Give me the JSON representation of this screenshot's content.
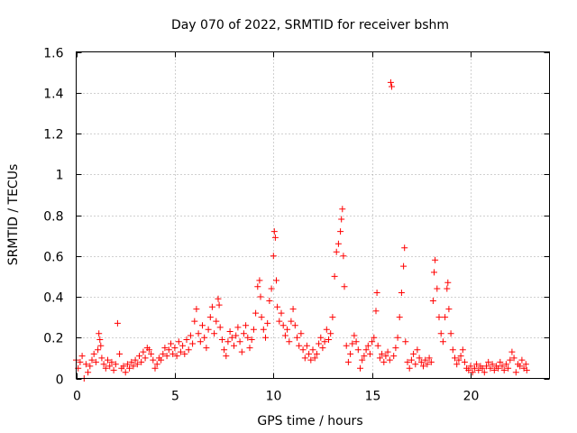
{
  "chart_data": {
    "type": "scatter",
    "title": "Day 070 of 2022, SRMTID for receiver bshm",
    "xlabel": "GPS time / hours",
    "ylabel": "SRMTID / TECUs",
    "xlim": [
      0,
      24
    ],
    "ylim": [
      0,
      1.6
    ],
    "xticks": [
      0,
      5,
      10,
      15,
      20
    ],
    "xtick_labels": [
      "0",
      "5",
      "10",
      "15",
      "20"
    ],
    "yticks": [
      0,
      0.2,
      0.4,
      0.6,
      0.8,
      1,
      1.2,
      1.4,
      1.6
    ],
    "ytick_labels": [
      "0",
      "0.2",
      "0.4",
      "0.6",
      "0.8",
      "1",
      "1.2",
      "1.4",
      "1.6"
    ],
    "grid": true,
    "marker": "plus",
    "color": "#ff0000",
    "points": [
      [
        0.0,
        0.09
      ],
      [
        0.1,
        0.05
      ],
      [
        0.2,
        0.08
      ],
      [
        0.3,
        0.11
      ],
      [
        0.4,
        0.0
      ],
      [
        0.5,
        0.07
      ],
      [
        0.6,
        0.03
      ],
      [
        0.7,
        0.06
      ],
      [
        0.8,
        0.09
      ],
      [
        0.9,
        0.12
      ],
      [
        1.0,
        0.08
      ],
      [
        1.1,
        0.14
      ],
      [
        1.15,
        0.22
      ],
      [
        1.2,
        0.19
      ],
      [
        1.25,
        0.16
      ],
      [
        1.3,
        0.1
      ],
      [
        1.4,
        0.07
      ],
      [
        1.5,
        0.05
      ],
      [
        1.6,
        0.09
      ],
      [
        1.7,
        0.06
      ],
      [
        1.8,
        0.08
      ],
      [
        1.9,
        0.04
      ],
      [
        2.0,
        0.07
      ],
      [
        2.1,
        0.27
      ],
      [
        2.2,
        0.12
      ],
      [
        2.3,
        0.05
      ],
      [
        2.4,
        0.06
      ],
      [
        2.5,
        0.03
      ],
      [
        2.6,
        0.07
      ],
      [
        2.7,
        0.05
      ],
      [
        2.8,
        0.08
      ],
      [
        2.9,
        0.06
      ],
      [
        3.0,
        0.09
      ],
      [
        3.1,
        0.07
      ],
      [
        3.2,
        0.11
      ],
      [
        3.3,
        0.08
      ],
      [
        3.4,
        0.13
      ],
      [
        3.5,
        0.1
      ],
      [
        3.6,
        0.15
      ],
      [
        3.7,
        0.14
      ],
      [
        3.8,
        0.12
      ],
      [
        3.9,
        0.09
      ],
      [
        4.0,
        0.05
      ],
      [
        4.1,
        0.07
      ],
      [
        4.2,
        0.1
      ],
      [
        4.3,
        0.09
      ],
      [
        4.4,
        0.12
      ],
      [
        4.5,
        0.15
      ],
      [
        4.6,
        0.11
      ],
      [
        4.7,
        0.14
      ],
      [
        4.8,
        0.17
      ],
      [
        4.9,
        0.12
      ],
      [
        5.0,
        0.15
      ],
      [
        5.1,
        0.11
      ],
      [
        5.2,
        0.18
      ],
      [
        5.3,
        0.13
      ],
      [
        5.4,
        0.16
      ],
      [
        5.5,
        0.12
      ],
      [
        5.6,
        0.19
      ],
      [
        5.7,
        0.14
      ],
      [
        5.8,
        0.21
      ],
      [
        5.9,
        0.17
      ],
      [
        6.0,
        0.28
      ],
      [
        6.1,
        0.34
      ],
      [
        6.2,
        0.22
      ],
      [
        6.3,
        0.18
      ],
      [
        6.4,
        0.26
      ],
      [
        6.5,
        0.2
      ],
      [
        6.6,
        0.15
      ],
      [
        6.7,
        0.24
      ],
      [
        6.8,
        0.3
      ],
      [
        6.9,
        0.35
      ],
      [
        7.0,
        0.22
      ],
      [
        7.1,
        0.28
      ],
      [
        7.2,
        0.39
      ],
      [
        7.25,
        0.36
      ],
      [
        7.3,
        0.25
      ],
      [
        7.4,
        0.19
      ],
      [
        7.5,
        0.14
      ],
      [
        7.6,
        0.11
      ],
      [
        7.7,
        0.18
      ],
      [
        7.8,
        0.23
      ],
      [
        7.9,
        0.2
      ],
      [
        8.0,
        0.16
      ],
      [
        8.1,
        0.21
      ],
      [
        8.2,
        0.25
      ],
      [
        8.3,
        0.18
      ],
      [
        8.4,
        0.13
      ],
      [
        8.5,
        0.22
      ],
      [
        8.6,
        0.26
      ],
      [
        8.7,
        0.2
      ],
      [
        8.8,
        0.15
      ],
      [
        8.9,
        0.19
      ],
      [
        9.0,
        0.24
      ],
      [
        9.1,
        0.32
      ],
      [
        9.2,
        0.45
      ],
      [
        9.3,
        0.48
      ],
      [
        9.35,
        0.4
      ],
      [
        9.4,
        0.3
      ],
      [
        9.5,
        0.24
      ],
      [
        9.6,
        0.2
      ],
      [
        9.7,
        0.27
      ],
      [
        9.8,
        0.38
      ],
      [
        9.9,
        0.44
      ],
      [
        10.0,
        0.6
      ],
      [
        10.05,
        0.72
      ],
      [
        10.1,
        0.69
      ],
      [
        10.15,
        0.48
      ],
      [
        10.2,
        0.35
      ],
      [
        10.3,
        0.28
      ],
      [
        10.4,
        0.32
      ],
      [
        10.5,
        0.26
      ],
      [
        10.6,
        0.21
      ],
      [
        10.7,
        0.24
      ],
      [
        10.8,
        0.18
      ],
      [
        10.9,
        0.28
      ],
      [
        11.0,
        0.34
      ],
      [
        11.1,
        0.26
      ],
      [
        11.2,
        0.2
      ],
      [
        11.3,
        0.16
      ],
      [
        11.4,
        0.22
      ],
      [
        11.5,
        0.14
      ],
      [
        11.6,
        0.1
      ],
      [
        11.7,
        0.16
      ],
      [
        11.8,
        0.12
      ],
      [
        11.9,
        0.09
      ],
      [
        12.0,
        0.14
      ],
      [
        12.1,
        0.1
      ],
      [
        12.2,
        0.12
      ],
      [
        12.3,
        0.17
      ],
      [
        12.4,
        0.2
      ],
      [
        12.5,
        0.15
      ],
      [
        12.6,
        0.18
      ],
      [
        12.7,
        0.24
      ],
      [
        12.8,
        0.19
      ],
      [
        12.9,
        0.22
      ],
      [
        13.0,
        0.3
      ],
      [
        13.1,
        0.5
      ],
      [
        13.2,
        0.62
      ],
      [
        13.3,
        0.66
      ],
      [
        13.4,
        0.72
      ],
      [
        13.45,
        0.78
      ],
      [
        13.5,
        0.83
      ],
      [
        13.55,
        0.6
      ],
      [
        13.6,
        0.45
      ],
      [
        13.7,
        0.16
      ],
      [
        13.8,
        0.08
      ],
      [
        13.9,
        0.12
      ],
      [
        14.0,
        0.17
      ],
      [
        14.1,
        0.21
      ],
      [
        14.2,
        0.18
      ],
      [
        14.3,
        0.14
      ],
      [
        14.4,
        0.05
      ],
      [
        14.5,
        0.09
      ],
      [
        14.6,
        0.11
      ],
      [
        14.7,
        0.14
      ],
      [
        14.8,
        0.16
      ],
      [
        14.9,
        0.12
      ],
      [
        15.0,
        0.18
      ],
      [
        15.1,
        0.2
      ],
      [
        15.2,
        0.33
      ],
      [
        15.25,
        0.42
      ],
      [
        15.3,
        0.16
      ],
      [
        15.4,
        0.1
      ],
      [
        15.5,
        0.12
      ],
      [
        15.6,
        0.08
      ],
      [
        15.7,
        0.11
      ],
      [
        15.8,
        0.13
      ],
      [
        15.9,
        0.09
      ],
      [
        15.95,
        1.45
      ],
      [
        16.0,
        1.43
      ],
      [
        16.1,
        0.11
      ],
      [
        16.2,
        0.15
      ],
      [
        16.3,
        0.2
      ],
      [
        16.4,
        0.3
      ],
      [
        16.5,
        0.42
      ],
      [
        16.6,
        0.55
      ],
      [
        16.65,
        0.64
      ],
      [
        16.7,
        0.18
      ],
      [
        16.8,
        0.08
      ],
      [
        16.9,
        0.05
      ],
      [
        17.0,
        0.09
      ],
      [
        17.1,
        0.12
      ],
      [
        17.2,
        0.07
      ],
      [
        17.3,
        0.14
      ],
      [
        17.4,
        0.1
      ],
      [
        17.5,
        0.08
      ],
      [
        17.6,
        0.06
      ],
      [
        17.7,
        0.09
      ],
      [
        17.8,
        0.07
      ],
      [
        17.9,
        0.1
      ],
      [
        18.0,
        0.08
      ],
      [
        18.1,
        0.38
      ],
      [
        18.15,
        0.52
      ],
      [
        18.2,
        0.58
      ],
      [
        18.3,
        0.44
      ],
      [
        18.4,
        0.3
      ],
      [
        18.5,
        0.22
      ],
      [
        18.6,
        0.18
      ],
      [
        18.7,
        0.3
      ],
      [
        18.8,
        0.44
      ],
      [
        18.85,
        0.47
      ],
      [
        18.9,
        0.34
      ],
      [
        19.0,
        0.22
      ],
      [
        19.1,
        0.14
      ],
      [
        19.2,
        0.1
      ],
      [
        19.3,
        0.07
      ],
      [
        19.4,
        0.09
      ],
      [
        19.5,
        0.11
      ],
      [
        19.6,
        0.14
      ],
      [
        19.7,
        0.08
      ],
      [
        19.8,
        0.05
      ],
      [
        19.9,
        0.04
      ],
      [
        20.0,
        0.06
      ],
      [
        20.1,
        0.03
      ],
      [
        20.2,
        0.05
      ],
      [
        20.3,
        0.07
      ],
      [
        20.4,
        0.04
      ],
      [
        20.5,
        0.06
      ],
      [
        20.6,
        0.05
      ],
      [
        20.7,
        0.03
      ],
      [
        20.8,
        0.06
      ],
      [
        20.9,
        0.08
      ],
      [
        21.0,
        0.05
      ],
      [
        21.1,
        0.07
      ],
      [
        21.2,
        0.04
      ],
      [
        21.3,
        0.06
      ],
      [
        21.4,
        0.05
      ],
      [
        21.5,
        0.08
      ],
      [
        21.6,
        0.06
      ],
      [
        21.7,
        0.04
      ],
      [
        21.8,
        0.07
      ],
      [
        21.9,
        0.05
      ],
      [
        22.0,
        0.09
      ],
      [
        22.1,
        0.13
      ],
      [
        22.2,
        0.1
      ],
      [
        22.3,
        0.03
      ],
      [
        22.4,
        0.07
      ],
      [
        22.5,
        0.06
      ],
      [
        22.6,
        0.09
      ],
      [
        22.7,
        0.05
      ],
      [
        22.8,
        0.07
      ],
      [
        22.85,
        0.04
      ]
    ]
  }
}
